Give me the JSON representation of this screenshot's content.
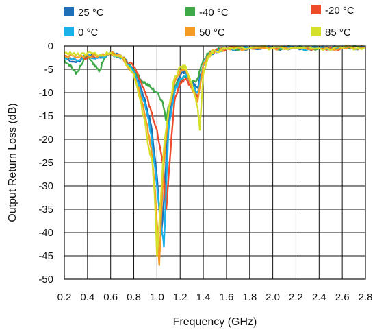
{
  "chart_data": {
    "type": "line",
    "xlabel": "Frequency (GHz)",
    "ylabel": "Output Return Loss (dB)",
    "xlim": [
      0.2,
      2.8
    ],
    "ylim": [
      -50,
      0
    ],
    "xticks": [
      "0.2",
      "0.4",
      "0.6",
      "0.8",
      "1.0",
      "1.2",
      "1.4",
      "1.6",
      "1.8",
      "2.0",
      "2.2",
      "2.4",
      "2.6",
      "2.8"
    ],
    "yticks": [
      "0",
      "-5",
      "-10",
      "-15",
      "-20",
      "-25",
      "-30",
      "-35",
      "-40",
      "-45",
      "-50"
    ],
    "grid": true,
    "legend_position": "top",
    "series": [
      {
        "name": "25 °C",
        "color": "#1f6fb8",
        "x": [
          0.2,
          0.3,
          0.4,
          0.5,
          0.6,
          0.7,
          0.8,
          0.85,
          0.9,
          0.95,
          1.0,
          1.02,
          1.04,
          1.06,
          1.08,
          1.1,
          1.15,
          1.2,
          1.25,
          1.3,
          1.35,
          1.4,
          1.45,
          1.5,
          1.6,
          1.8,
          2.0,
          2.2,
          2.4,
          2.6,
          2.8
        ],
        "y": [
          -2.5,
          -3.5,
          -2.0,
          -2.5,
          -1.5,
          -2.5,
          -5,
          -8,
          -12,
          -17,
          -28,
          -35,
          -40,
          -33,
          -24,
          -16,
          -9,
          -6,
          -5.5,
          -8,
          -9,
          -4,
          -2,
          -1,
          -0.6,
          -0.5,
          -0.4,
          -0.4,
          -0.5,
          -0.4,
          -0.4
        ]
      },
      {
        "name": "-40 °C",
        "color": "#3daa47",
        "x": [
          0.2,
          0.25,
          0.3,
          0.35,
          0.4,
          0.45,
          0.5,
          0.55,
          0.6,
          0.7,
          0.8,
          0.85,
          0.9,
          0.95,
          1.0,
          1.05,
          1.08,
          1.1,
          1.15,
          1.2,
          1.25,
          1.3,
          1.35,
          1.4,
          1.45,
          1.5,
          1.6,
          1.8,
          2.0,
          2.2,
          2.4,
          2.6,
          2.8
        ],
        "y": [
          -3,
          -4,
          -6,
          -4,
          -2,
          -4,
          -5.5,
          -2.5,
          -1.5,
          -2.5,
          -5,
          -7,
          -8,
          -9,
          -10,
          -12,
          -16,
          -13,
          -9,
          -7,
          -6.5,
          -8,
          -7,
          -3,
          -1.5,
          -1,
          -0.6,
          -0.5,
          -0.4,
          -0.4,
          -0.5,
          -0.4,
          -0.4
        ]
      },
      {
        "name": "-20 °C",
        "color": "#ee4b2b",
        "x": [
          0.2,
          0.3,
          0.4,
          0.5,
          0.6,
          0.7,
          0.8,
          0.85,
          0.9,
          0.95,
          1.0,
          1.05,
          1.08,
          1.1,
          1.15,
          1.2,
          1.25,
          1.3,
          1.35,
          1.4,
          1.45,
          1.5,
          1.6,
          1.8,
          2.0,
          2.2,
          2.4,
          2.6,
          2.8
        ],
        "y": [
          -2,
          -3,
          -2.5,
          -2,
          -1.5,
          -2.5,
          -4.5,
          -7,
          -10,
          -14,
          -18,
          -25,
          -35,
          -28,
          -12,
          -8,
          -7,
          -9,
          -11,
          -4,
          -2,
          -1,
          -0.6,
          -0.5,
          -0.4,
          -0.4,
          -0.5,
          -0.4,
          -0.4
        ]
      },
      {
        "name": "0 °C",
        "color": "#1ab0e8",
        "x": [
          0.2,
          0.3,
          0.4,
          0.5,
          0.6,
          0.7,
          0.8,
          0.85,
          0.9,
          0.95,
          1.0,
          1.03,
          1.06,
          1.08,
          1.1,
          1.15,
          1.2,
          1.25,
          1.3,
          1.35,
          1.4,
          1.45,
          1.5,
          1.6,
          1.8,
          2.0,
          2.2,
          2.4,
          2.6,
          2.8
        ],
        "y": [
          -2.5,
          -3,
          -2,
          -2.5,
          -1.5,
          -2.5,
          -5.5,
          -9,
          -13,
          -19,
          -30,
          -37,
          -43,
          -30,
          -18,
          -10,
          -7,
          -6,
          -8,
          -10,
          -4,
          -2,
          -1,
          -0.6,
          -0.5,
          -0.4,
          -0.4,
          -0.5,
          -0.4,
          -0.4
        ]
      },
      {
        "name": "50 °C",
        "color": "#f59a23",
        "x": [
          0.2,
          0.3,
          0.4,
          0.5,
          0.6,
          0.7,
          0.8,
          0.85,
          0.9,
          0.95,
          0.98,
          1.0,
          1.02,
          1.04,
          1.06,
          1.1,
          1.15,
          1.2,
          1.25,
          1.3,
          1.35,
          1.4,
          1.45,
          1.5,
          1.6,
          1.8,
          2.0,
          2.2,
          2.4,
          2.6,
          2.8
        ],
        "y": [
          -2,
          -2.5,
          -2,
          -2,
          -1.5,
          -2.5,
          -6,
          -10,
          -15,
          -22,
          -30,
          -38,
          -47,
          -35,
          -25,
          -14,
          -8,
          -5.5,
          -5,
          -9,
          -12,
          -4,
          -2,
          -1,
          -0.6,
          -0.5,
          -0.4,
          -0.4,
          -0.5,
          -0.4,
          -0.4
        ]
      },
      {
        "name": "85 °C",
        "color": "#d4e02a",
        "x": [
          0.2,
          0.3,
          0.4,
          0.5,
          0.6,
          0.7,
          0.8,
          0.85,
          0.9,
          0.93,
          0.96,
          0.98,
          1.0,
          1.02,
          1.04,
          1.06,
          1.1,
          1.15,
          1.2,
          1.25,
          1.3,
          1.35,
          1.37,
          1.4,
          1.45,
          1.5,
          1.6,
          1.8,
          2.0,
          2.2,
          2.4,
          2.6,
          2.8
        ],
        "y": [
          -1.5,
          -2,
          -1.5,
          -2,
          -1.5,
          -2.5,
          -6,
          -11,
          -17,
          -22,
          -25,
          -32,
          -45,
          -38,
          -30,
          -22,
          -14,
          -7,
          -4.5,
          -4.5,
          -8,
          -13,
          -18,
          -6,
          -2,
          -1,
          -0.6,
          -0.5,
          -0.4,
          -0.4,
          -0.5,
          -0.4,
          -0.4
        ]
      }
    ]
  }
}
